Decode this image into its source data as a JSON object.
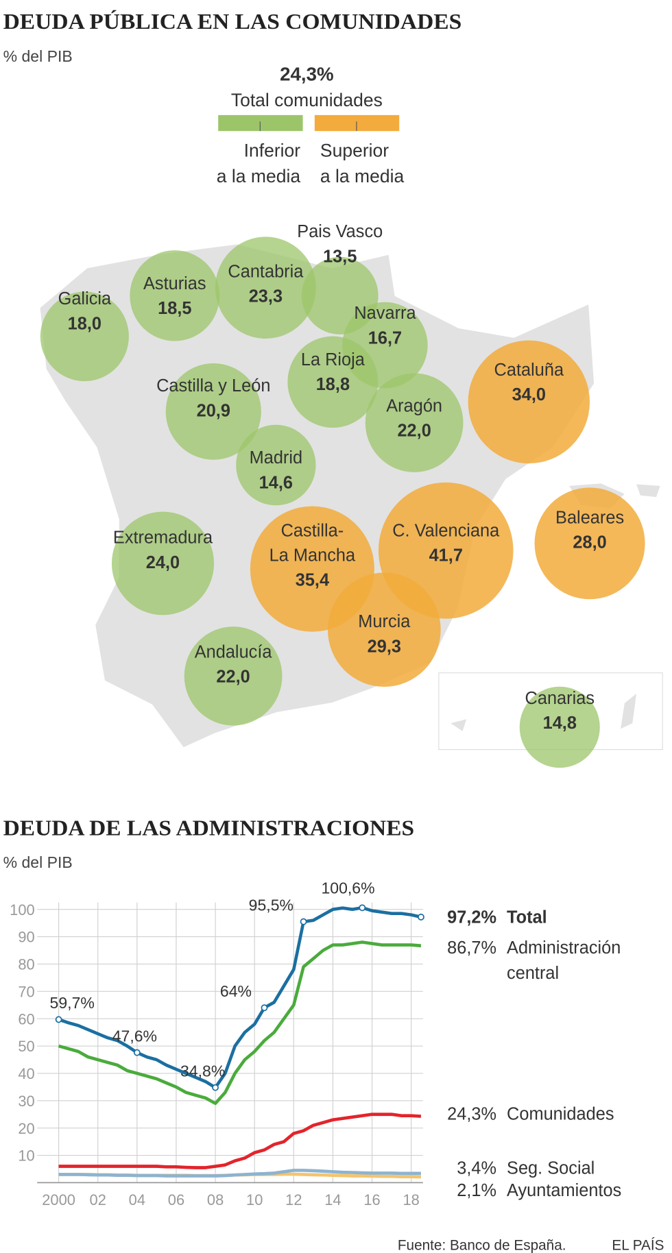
{
  "chart_data": [
    {
      "type": "bubble_map",
      "title": "DEUDA PÚBLICA EN LAS COMUNIDADES",
      "subtitle": "% del PIB",
      "mean": 24.3,
      "mean_label": "24,3%",
      "mean_name": "Total comunidades",
      "legend": [
        {
          "label": [
            "Inferior",
            "a la media"
          ],
          "color": "#9cc56a"
        },
        {
          "label": [
            "Superior",
            "a la media"
          ],
          "color": "#f2ab3c"
        }
      ],
      "regions": [
        {
          "name": "Galicia",
          "value": 18.0,
          "value_label": "18,0"
        },
        {
          "name": "Asturias",
          "value": 18.5,
          "value_label": "18,5"
        },
        {
          "name": "Cantabria",
          "value": 23.3,
          "value_label": "23,3"
        },
        {
          "name": "Pais Vasco",
          "value": 13.5,
          "value_label": "13,5"
        },
        {
          "name": "Navarra",
          "value": 16.7,
          "value_label": "16,7"
        },
        {
          "name": "La Rioja",
          "value": 18.8,
          "value_label": "18,8"
        },
        {
          "name": "Castilla y León",
          "value": 20.9,
          "value_label": "20,9"
        },
        {
          "name": "Aragón",
          "value": 22.0,
          "value_label": "22,0"
        },
        {
          "name": "Cataluña",
          "value": 34.0,
          "value_label": "34,0"
        },
        {
          "name": "Madrid",
          "value": 14.6,
          "value_label": "14,6"
        },
        {
          "name": "Extremadura",
          "value": 24.0,
          "value_label": "24,0"
        },
        {
          "name": "Castilla-La Mancha",
          "value": 35.4,
          "value_label": "35,4"
        },
        {
          "name": "C. Valenciana",
          "value": 41.7,
          "value_label": "41,7"
        },
        {
          "name": "Baleares",
          "value": 28.0,
          "value_label": "28,0"
        },
        {
          "name": "Murcia",
          "value": 29.3,
          "value_label": "29,3"
        },
        {
          "name": "Andalucía",
          "value": 22.0,
          "value_label": "22,0"
        },
        {
          "name": "Canarias",
          "value": 14.8,
          "value_label": "14,8"
        }
      ]
    },
    {
      "type": "line",
      "title": "DEUDA DE LAS ADMINISTRACIONES",
      "subtitle": "% del PIB",
      "x": [
        2000,
        2000.5,
        2001,
        2001.5,
        2002,
        2002.5,
        2003,
        2003.5,
        2004,
        2004.5,
        2005,
        2005.5,
        2006,
        2006.5,
        2007,
        2007.5,
        2008,
        2008.5,
        2009,
        2009.5,
        2010,
        2010.5,
        2011,
        2011.5,
        2012,
        2012.5,
        2013,
        2013.5,
        2014,
        2014.5,
        2015,
        2015.5,
        2016,
        2016.5,
        2017,
        2017.5,
        2018,
        2018.5
      ],
      "xlim": [
        1998.9,
        2018.6
      ],
      "xticks": [
        {
          "value": 2000,
          "label": "2000"
        },
        {
          "value": 2002,
          "label": "02"
        },
        {
          "value": 2004,
          "label": "04"
        },
        {
          "value": 2006,
          "label": "06"
        },
        {
          "value": 2008,
          "label": "08"
        },
        {
          "value": 2010,
          "label": "10"
        },
        {
          "value": 2012,
          "label": "12"
        },
        {
          "value": 2014,
          "label": "14"
        },
        {
          "value": 2016,
          "label": "16"
        },
        {
          "value": 2018,
          "label": "18"
        }
      ],
      "ylim": [
        0,
        104
      ],
      "yticks": [
        10,
        20,
        30,
        40,
        50,
        60,
        70,
        80,
        90,
        100
      ],
      "grid": true,
      "series": [
        {
          "name": "Total",
          "color": "#1b6fa1",
          "end_label": "97,2%",
          "values": [
            59.7,
            58.5,
            57.5,
            56,
            54.5,
            53,
            52,
            50,
            47.6,
            46,
            45,
            43,
            41.5,
            40,
            38.5,
            37,
            34.8,
            40,
            50,
            55,
            58,
            64,
            66,
            72,
            78,
            95.5,
            96,
            98,
            100,
            100.5,
            100,
            100.6,
            99.5,
            99,
            98.5,
            98.5,
            98,
            97.2
          ]
        },
        {
          "name": "Administración central",
          "color": "#4aab3c",
          "end_label": "86,7%",
          "values": [
            50,
            49,
            48,
            46,
            45,
            44,
            43,
            41,
            40,
            39,
            38,
            36.5,
            35,
            33,
            32,
            31,
            29,
            33,
            40,
            45,
            48,
            52,
            55,
            60,
            65,
            79,
            82,
            85,
            87,
            87,
            87.5,
            88,
            87.5,
            87,
            87,
            87,
            87,
            86.7
          ]
        },
        {
          "name": "Comunidades",
          "color": "#e3242b",
          "end_label": "24,3%",
          "values": [
            6,
            6,
            6,
            6,
            6,
            6,
            6,
            6,
            6,
            6,
            6,
            5.8,
            5.8,
            5.6,
            5.5,
            5.5,
            6,
            6.5,
            8,
            9,
            11,
            12,
            14,
            15,
            18,
            19,
            21,
            22,
            23,
            23.5,
            24,
            24.5,
            25,
            25,
            25,
            24.5,
            24.5,
            24.3
          ]
        },
        {
          "name": "Seg. Social",
          "color": "#8db3d0",
          "end_label": "3,4%",
          "values": [
            3,
            3,
            3,
            2.9,
            2.8,
            2.8,
            2.7,
            2.7,
            2.6,
            2.6,
            2.6,
            2.5,
            2.5,
            2.5,
            2.5,
            2.5,
            2.5,
            2.6,
            2.8,
            3,
            3.2,
            3.3,
            3.5,
            4,
            4.5,
            4.5,
            4.4,
            4.2,
            4,
            3.8,
            3.7,
            3.6,
            3.5,
            3.5,
            3.5,
            3.4,
            3.4,
            3.4
          ]
        },
        {
          "name": "Ayuntamientos",
          "color": "#f4c46c",
          "end_label": "2,1%",
          "values": [
            3,
            3,
            3,
            3,
            2.9,
            2.9,
            2.8,
            2.8,
            2.7,
            2.7,
            2.7,
            2.7,
            2.7,
            2.7,
            2.6,
            2.6,
            2.6,
            2.7,
            2.8,
            2.9,
            3,
            3,
            3,
            3.1,
            3.1,
            3,
            2.9,
            2.8,
            2.7,
            2.6,
            2.5,
            2.5,
            2.4,
            2.3,
            2.3,
            2.2,
            2.2,
            2.1
          ]
        }
      ],
      "annotations": [
        {
          "x": 2000,
          "value": 59.7,
          "label": "59,7%"
        },
        {
          "x": 2004,
          "value": 47.6,
          "label": "47,6%"
        },
        {
          "x": 2008,
          "value": 34.8,
          "label": "34,8%"
        },
        {
          "x": 2010.5,
          "value": 64,
          "label": "64%"
        },
        {
          "x": 2012.5,
          "value": 95.5,
          "label": "95,5%"
        },
        {
          "x": 2015.5,
          "value": 100.6,
          "label": "100,6%"
        },
        {
          "x": 2018.5,
          "value": 97.2,
          "label": "97,2%"
        }
      ]
    }
  ],
  "footer": {
    "source": "Fuente: Banco de España.",
    "brand": "EL PAÍS"
  }
}
